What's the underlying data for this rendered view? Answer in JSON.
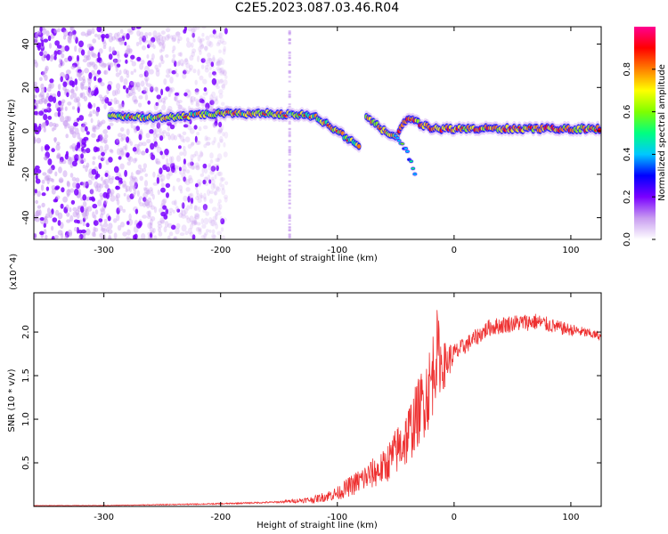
{
  "title": "C2E5.2023.087.03.46.R04",
  "chart_data": [
    {
      "type": "heatmap",
      "xlabel": "Height of straight line (km)",
      "ylabel": "Frequency (Hz)",
      "xlim": [
        -360,
        126
      ],
      "ylim": [
        -50,
        48
      ],
      "x_ticks": [
        -300,
        -200,
        -100,
        0,
        100
      ],
      "y_ticks": [
        -40,
        -20,
        0,
        20,
        40
      ],
      "colorbar": {
        "label": "Normalized spectral amplitude",
        "range": [
          0,
          1
        ],
        "ticks": [
          0.0,
          0.2,
          0.4,
          0.6,
          0.8
        ],
        "colormap": [
          "#ffffff",
          "#c89cf0",
          "#7a00ff",
          "#0000ff",
          "#00c8ff",
          "#00ff80",
          "#7fff00",
          "#ffff00",
          "#ff8000",
          "#ff0000",
          "#ff0090"
        ]
      },
      "features": [
        {
          "name": "broadband noise",
          "x_range": [
            -360,
            -195
          ],
          "y_range": [
            -50,
            48
          ],
          "amplitude": 0.1
        },
        {
          "name": "main trace",
          "points": [
            [
              -295,
              7
            ],
            [
              -250,
              6
            ],
            [
              -200,
              8
            ],
            [
              -160,
              8
            ],
            [
              -120,
              7
            ],
            [
              -100,
              0
            ],
            [
              -80,
              -8
            ]
          ],
          "amplitude": 0.5
        },
        {
          "name": "trace",
          "points": [
            [
              -75,
              6
            ],
            [
              -60,
              0
            ],
            [
              -50,
              -3
            ],
            [
              -40,
              6
            ],
            [
              -20,
              1
            ],
            [
              0,
              1
            ],
            [
              50,
              1
            ],
            [
              126,
              1
            ]
          ],
          "amplitude": 0.6
        },
        {
          "name": "dispersion tail",
          "points": [
            [
              -50,
              -2
            ],
            [
              -40,
              -10
            ],
            [
              -32,
              -22
            ]
          ],
          "amplitude": 0.3
        },
        {
          "name": "vertical streak",
          "x_range": [
            -142,
            -140
          ],
          "y_range": [
            -50,
            48
          ],
          "amplitude": 0.08
        }
      ],
      "grid": false
    },
    {
      "type": "line",
      "xlabel": "Height of straight line (km)",
      "ylabel": "SNR (10 * v/v)",
      "y_multiplier": "(x10^4)",
      "xlim": [
        -360,
        126
      ],
      "ylim": [
        0,
        2.45
      ],
      "x_ticks": [
        -300,
        -200,
        -100,
        0,
        100
      ],
      "y_ticks": [
        0.5,
        1.0,
        1.5,
        2.0
      ],
      "series": [
        {
          "color": "#ee3030",
          "x": [
            -360,
            -300,
            -250,
            -200,
            -150,
            -120,
            -100,
            -80,
            -60,
            -40,
            -30,
            -20,
            -15,
            -10,
            0,
            10,
            20,
            30,
            50,
            70,
            90,
            110,
            126
          ],
          "y": [
            0.01,
            0.01,
            0.02,
            0.03,
            0.05,
            0.08,
            0.15,
            0.3,
            0.45,
            0.8,
            1.1,
            1.4,
            1.8,
            1.6,
            1.75,
            1.85,
            1.95,
            2.05,
            2.1,
            2.12,
            2.05,
            2.0,
            1.95
          ],
          "noise_amplitude": [
            0.002,
            0.003,
            0.005,
            0.008,
            0.01,
            0.04,
            0.08,
            0.15,
            0.2,
            0.35,
            0.4,
            0.5,
            0.5,
            0.3,
            0.12,
            0.1,
            0.1,
            0.1,
            0.1,
            0.1,
            0.08,
            0.06,
            0.05
          ]
        }
      ],
      "grid": false
    }
  ]
}
